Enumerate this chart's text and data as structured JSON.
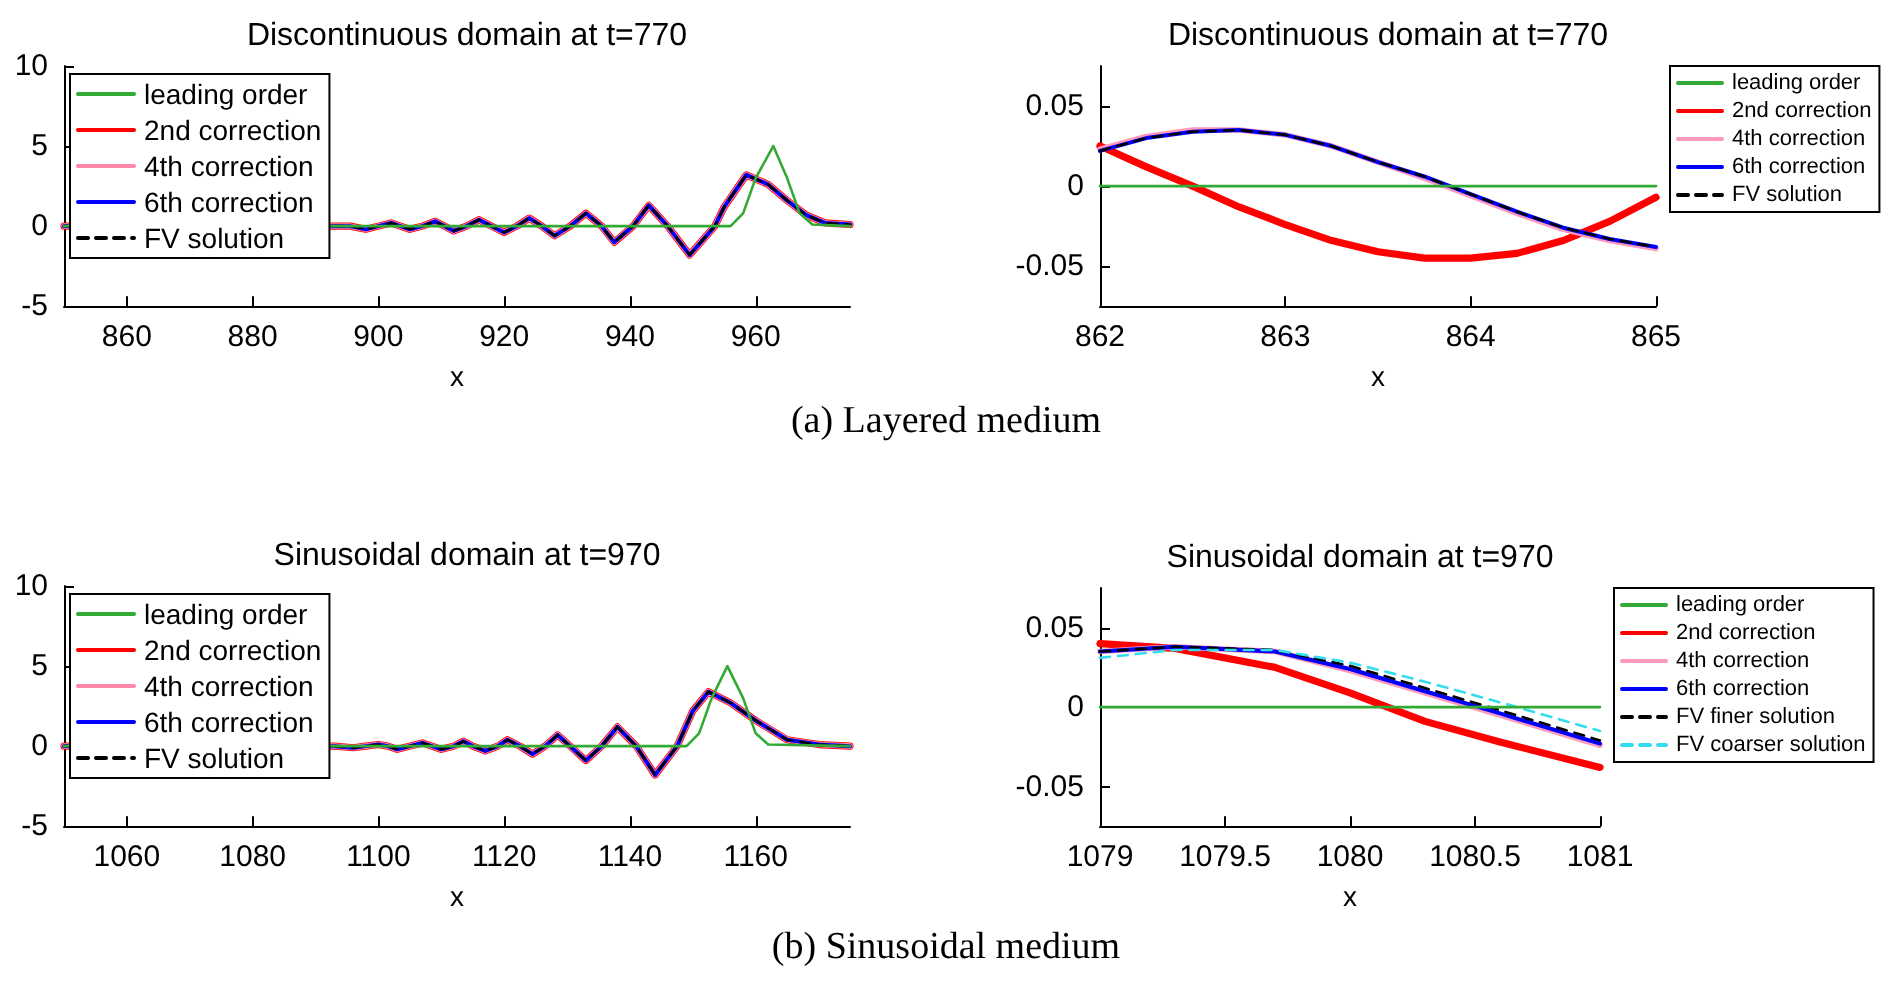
{
  "chart_data": [
    {
      "type": "line",
      "title": "Discontinuous domain at t=770",
      "xlabel": "x",
      "xlim": [
        850,
        975
      ],
      "xticks": [
        860,
        880,
        900,
        920,
        940,
        960
      ],
      "ylim": [
        -5,
        10
      ],
      "yticks": [
        -5,
        0,
        5,
        10
      ],
      "legend": "top left",
      "annotations": [
        "(a) Layered medium"
      ],
      "x": [
        850,
        890,
        895.5,
        898,
        900,
        902,
        903.5,
        905,
        907,
        909,
        910.5,
        912,
        914,
        916,
        918,
        920,
        922,
        924,
        926,
        928,
        930.5,
        933,
        935.5,
        937.5,
        940.5,
        943,
        946,
        949.5,
        953.5,
        955,
        958.5,
        962,
        965,
        968,
        971,
        975
      ],
      "series": [
        {
          "name": "leading order",
          "color": "#33aa33",
          "x": [
            850,
            956,
            958,
            960,
            962.8,
            965,
            967,
            969,
            975
          ],
          "values": [
            0,
            0,
            0.8,
            3,
            5,
            3,
            0.8,
            0.1,
            0
          ]
        },
        {
          "name": "2nd correction",
          "color": "#ff0000",
          "values": [
            0,
            null,
            0,
            -0.2,
            0,
            0.2,
            0,
            -0.2,
            0,
            0.3,
            0,
            -0.3,
            0,
            0.4,
            0,
            -0.4,
            0,
            0.5,
            0,
            -0.6,
            0,
            0.8,
            0,
            -1.0,
            0,
            1.3,
            0,
            -1.8,
            0,
            1.2,
            3.2,
            2.6,
            1.6,
            0.7,
            0.2,
            0.1
          ]
        },
        {
          "name": "4th correction",
          "color": "#ff88aa",
          "values": [
            0,
            null,
            0,
            -0.2,
            0,
            0.2,
            0,
            -0.2,
            0,
            0.3,
            0,
            -0.3,
            0,
            0.4,
            0,
            -0.4,
            0,
            0.5,
            0,
            -0.6,
            0,
            0.8,
            0,
            -1.0,
            0,
            1.3,
            0,
            -1.8,
            0,
            1.2,
            3.2,
            2.6,
            1.6,
            0.7,
            0.2,
            0.1
          ]
        },
        {
          "name": "6th correction",
          "color": "#0000ff",
          "values": [
            0,
            null,
            0,
            -0.2,
            0,
            0.2,
            0,
            -0.2,
            0,
            0.3,
            0,
            -0.3,
            0,
            0.4,
            0,
            -0.4,
            0,
            0.5,
            0,
            -0.6,
            0,
            0.8,
            0,
            -1.0,
            0,
            1.3,
            0,
            -1.8,
            0,
            1.2,
            3.2,
            2.6,
            1.6,
            0.7,
            0.2,
            0.1
          ]
        },
        {
          "name": "FV solution",
          "color": "#000000",
          "line_style": "dashed",
          "values": [
            0,
            null,
            0,
            -0.2,
            0,
            0.2,
            0,
            -0.2,
            0,
            0.3,
            0,
            -0.3,
            0,
            0.4,
            0,
            -0.4,
            0,
            0.5,
            0,
            -0.6,
            0,
            0.8,
            0,
            -1.0,
            0,
            1.3,
            0,
            -1.8,
            0,
            1.2,
            3.2,
            2.6,
            1.6,
            0.7,
            0.2,
            0.1
          ]
        }
      ]
    },
    {
      "type": "line",
      "title": "Discontinuous domain at t=770",
      "xlabel": "x",
      "xlim": [
        862,
        865
      ],
      "xticks": [
        862,
        863,
        864,
        865
      ],
      "ylim": [
        -0.075,
        0.075
      ],
      "yticks": [
        -0.05,
        0,
        0.05
      ],
      "legend": "right",
      "x": [
        862,
        862.25,
        862.5,
        862.75,
        863,
        863.25,
        863.5,
        863.75,
        864,
        864.25,
        864.5,
        864.75,
        865
      ],
      "series": [
        {
          "name": "leading order",
          "color": "#33aa33",
          "values": [
            0,
            0,
            0,
            0,
            0,
            0,
            0,
            0,
            0,
            0,
            0,
            0,
            0
          ]
        },
        {
          "name": "2nd correction",
          "color": "#ff0000",
          "values": [
            0.025,
            0.012,
            0,
            -0.013,
            -0.024,
            -0.034,
            -0.041,
            -0.045,
            -0.045,
            -0.042,
            -0.034,
            -0.022,
            -0.007
          ]
        },
        {
          "name": "4th correction",
          "color": "#ff99bb",
          "values": [
            0.023,
            0.031,
            0.035,
            0.035,
            0.032,
            0.025,
            0.015,
            0.005,
            -0.006,
            -0.017,
            -0.027,
            -0.034,
            -0.039
          ]
        },
        {
          "name": "6th correction",
          "color": "#0000ff",
          "values": [
            0.022,
            0.03,
            0.034,
            0.035,
            0.032,
            0.025,
            0.015,
            0.006,
            -0.005,
            -0.016,
            -0.026,
            -0.033,
            -0.038
          ]
        },
        {
          "name": "FV solution",
          "color": "#000000",
          "line_style": "dashed",
          "values": [
            0.022,
            0.03,
            0.034,
            0.035,
            0.032,
            0.025,
            0.015,
            0.006,
            -0.005,
            -0.016,
            -0.026,
            -0.033,
            -0.038
          ]
        }
      ]
    },
    {
      "type": "line",
      "title": "Sinusoidal domain at t=970",
      "xlabel": "x",
      "xlim": [
        1050,
        1175
      ],
      "xticks": [
        1060,
        1080,
        1100,
        1120,
        1140,
        1160
      ],
      "ylim": [
        -5,
        10
      ],
      "yticks": [
        -5,
        0,
        5,
        10
      ],
      "legend": "top left",
      "annotations": [
        "(b) Sinusoidal medium"
      ],
      "x": [
        1050,
        1093,
        1096,
        1098,
        1100,
        1101.5,
        1103,
        1105,
        1107,
        1108.5,
        1110,
        1112,
        1113.5,
        1115,
        1117,
        1119,
        1120.5,
        1122.5,
        1124.5,
        1126.5,
        1128.5,
        1130.5,
        1133,
        1135.5,
        1138,
        1141,
        1144,
        1147.5,
        1150,
        1152.5,
        1156,
        1160,
        1165,
        1170,
        1175
      ],
      "series": [
        {
          "name": "leading order",
          "color": "#33aa33",
          "x": [
            1050,
            1149,
            1151,
            1153,
            1155.5,
            1158,
            1160,
            1162,
            1175
          ],
          "values": [
            0,
            0,
            0.8,
            3,
            5,
            3,
            0.8,
            0.1,
            0
          ]
        },
        {
          "name": "2nd correction",
          "color": "#ff0000",
          "values": [
            0,
            0,
            -0.1,
            0,
            0.1,
            0,
            -0.2,
            0,
            0.2,
            0,
            -0.2,
            0,
            0.3,
            0,
            -0.3,
            0,
            0.4,
            0,
            -0.5,
            0,
            0.7,
            0,
            -0.9,
            0,
            1.2,
            0,
            -1.8,
            0,
            2.2,
            3.4,
            2.7,
            1.6,
            0.4,
            0.1,
            0
          ]
        },
        {
          "name": "4th correction",
          "color": "#ff88aa",
          "values": [
            0,
            0,
            -0.1,
            0,
            0.1,
            0,
            -0.2,
            0,
            0.2,
            0,
            -0.2,
            0,
            0.3,
            0,
            -0.3,
            0,
            0.4,
            0,
            -0.5,
            0,
            0.7,
            0,
            -0.9,
            0,
            1.2,
            0,
            -1.8,
            0,
            2.2,
            3.4,
            2.7,
            1.6,
            0.4,
            0.1,
            0
          ]
        },
        {
          "name": "6th correction",
          "color": "#0000ff",
          "values": [
            0,
            0,
            -0.1,
            0,
            0.1,
            0,
            -0.2,
            0,
            0.2,
            0,
            -0.2,
            0,
            0.3,
            0,
            -0.3,
            0,
            0.4,
            0,
            -0.5,
            0,
            0.7,
            0,
            -0.9,
            0,
            1.2,
            0,
            -1.8,
            0,
            2.2,
            3.4,
            2.7,
            1.6,
            0.4,
            0.1,
            0
          ]
        },
        {
          "name": "FV solution",
          "color": "#000000",
          "line_style": "dashed",
          "values": [
            0,
            0,
            -0.1,
            0,
            0.1,
            0,
            -0.2,
            0,
            0.2,
            0,
            -0.2,
            0,
            0.3,
            0,
            -0.3,
            0,
            0.4,
            0,
            -0.5,
            0,
            0.7,
            0,
            -0.9,
            0,
            1.2,
            0,
            -1.8,
            0,
            2.2,
            3.4,
            2.7,
            1.6,
            0.4,
            0.1,
            0
          ]
        }
      ]
    },
    {
      "type": "line",
      "title": "Sinusoidal domain at t=970",
      "xlabel": "x",
      "xlim": [
        1079,
        1081
      ],
      "xticks": [
        1079,
        1079.5,
        1080,
        1080.5,
        1081
      ],
      "ylim": [
        -0.075,
        0.075
      ],
      "yticks": [
        -0.05,
        0,
        0.05
      ],
      "legend": "right",
      "x": [
        1079,
        1079.3,
        1079.7,
        1080,
        1080.3,
        1080.6,
        1081
      ],
      "series": [
        {
          "name": "leading order",
          "color": "#33aa33",
          "values": [
            0,
            0,
            0,
            0,
            0,
            0,
            0
          ]
        },
        {
          "name": "2nd correction",
          "color": "#ff0000",
          "values": [
            0.04,
            0.037,
            0.025,
            0.009,
            -0.009,
            -0.022,
            -0.038
          ]
        },
        {
          "name": "4th correction",
          "color": "#ff99bb",
          "values": [
            0.035,
            0.038,
            0.035,
            0.023,
            0.009,
            -0.005,
            -0.024
          ]
        },
        {
          "name": "6th correction",
          "color": "#0000ff",
          "values": [
            0.035,
            0.038,
            0.035,
            0.024,
            0.01,
            -0.004,
            -0.023
          ]
        },
        {
          "name": "FV finer solution",
          "color": "#000000",
          "line_style": "dashed",
          "values": [
            0.035,
            0.038,
            0.036,
            0.026,
            0.012,
            -0.002,
            -0.021
          ]
        },
        {
          "name": "FV coarser solution",
          "color": "#33ddee",
          "line_style": "dashed",
          "values": [
            0.031,
            0.036,
            0.036,
            0.028,
            0.016,
            0.003,
            -0.015
          ]
        }
      ]
    }
  ]
}
